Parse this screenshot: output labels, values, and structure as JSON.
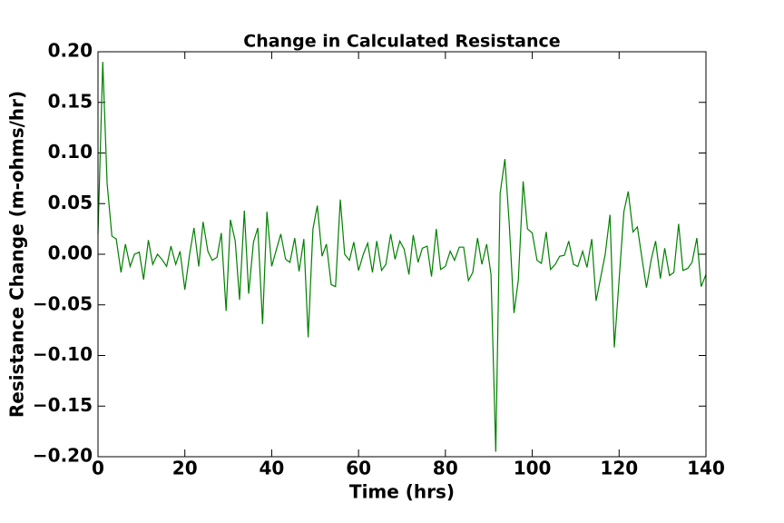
{
  "chart_data": {
    "type": "line",
    "title": "Change in Calculated Resistance",
    "x_label": "Time (hrs)",
    "y_label": "Resistance Change (m-ohms/hr)",
    "xlim": [
      0,
      140
    ],
    "xticks": [
      0,
      20,
      40,
      60,
      80,
      100,
      120,
      140
    ],
    "ylim": [
      -0.2,
      0.2
    ],
    "yticks": [
      {
        "value": -0.2,
        "label": "−0.20"
      },
      {
        "value": -0.15,
        "label": "−0.15"
      },
      {
        "value": -0.1,
        "label": "−0.10"
      },
      {
        "value": -0.05,
        "label": "−0.05"
      },
      {
        "value": 0,
        "label": "0.00"
      },
      {
        "value": 0.05,
        "label": "0.05"
      },
      {
        "value": 0.1,
        "label": "0.10"
      },
      {
        "value": 0.15,
        "label": "0.15"
      },
      {
        "value": 0.2,
        "label": "0.20"
      }
    ],
    "grid": false,
    "x": [
      0,
      1.1,
      2.1,
      3.2,
      4.2,
      5.3,
      6.3,
      7.4,
      8.4,
      9.5,
      10.5,
      11.6,
      12.6,
      13.7,
      14.7,
      15.8,
      16.8,
      17.9,
      18.9,
      20.0,
      21.1,
      22.1,
      23.2,
      24.2,
      25.3,
      26.3,
      27.4,
      28.4,
      29.5,
      30.5,
      31.6,
      32.6,
      33.7,
      34.7,
      35.8,
      36.8,
      37.9,
      38.9,
      40.0,
      41.1,
      42.1,
      43.2,
      44.2,
      45.3,
      46.3,
      47.4,
      48.4,
      49.5,
      50.5,
      51.6,
      52.6,
      53.7,
      54.7,
      55.8,
      56.8,
      57.9,
      58.9,
      60.0,
      61.1,
      62.1,
      63.2,
      64.2,
      65.3,
      66.3,
      67.4,
      68.4,
      69.5,
      70.5,
      71.6,
      72.6,
      73.7,
      74.7,
      75.8,
      76.8,
      77.9,
      78.9,
      80.0,
      81.1,
      82.1,
      83.2,
      84.2,
      85.3,
      86.3,
      87.4,
      88.4,
      89.5,
      90.5,
      91.6,
      92.6,
      93.7,
      94.7,
      95.8,
      96.8,
      97.9,
      98.9,
      100.0,
      101.1,
      102.1,
      103.2,
      104.2,
      105.3,
      106.3,
      107.4,
      108.4,
      109.5,
      110.5,
      111.6,
      112.6,
      113.7,
      114.7,
      115.8,
      116.8,
      117.9,
      118.9,
      120.0,
      121.1,
      122.1,
      123.2,
      124.2,
      125.3,
      126.3,
      127.4,
      128.4,
      129.5,
      130.5,
      131.6,
      132.6,
      133.7,
      134.7,
      135.8,
      136.8,
      137.9,
      138.9,
      140.0
    ],
    "series": [
      {
        "color": "#008000",
        "values": [
          0.02,
          0.19,
          0.07,
          0.018,
          0.015,
          -0.018,
          0.01,
          -0.012,
          0.0,
          0.002,
          -0.025,
          0.014,
          -0.01,
          0.0,
          -0.005,
          -0.012,
          0.008,
          -0.01,
          0.003,
          -0.035,
          0.0,
          0.026,
          -0.012,
          0.032,
          0.003,
          -0.006,
          -0.003,
          0.021,
          -0.056,
          0.034,
          0.013,
          -0.045,
          0.043,
          -0.039,
          0.012,
          0.026,
          -0.069,
          0.042,
          -0.012,
          0.005,
          0.02,
          -0.005,
          -0.008,
          0.016,
          -0.017,
          0.015,
          -0.082,
          0.025,
          0.048,
          -0.002,
          0.01,
          -0.03,
          -0.032,
          0.054,
          0.0,
          -0.006,
          0.012,
          -0.016,
          0.0,
          0.011,
          -0.018,
          0.013,
          -0.016,
          -0.01,
          0.02,
          -0.005,
          0.013,
          0.005,
          -0.02,
          0.019,
          -0.008,
          0.006,
          0.008,
          -0.022,
          0.025,
          -0.015,
          -0.012,
          0.003,
          -0.006,
          0.007,
          0.007,
          -0.026,
          -0.018,
          0.016,
          -0.01,
          0.01,
          -0.02,
          -0.195,
          0.06,
          0.094,
          0.03,
          -0.058,
          -0.025,
          0.072,
          0.025,
          0.021,
          -0.006,
          -0.009,
          0.022,
          -0.015,
          -0.01,
          -0.002,
          -0.001,
          0.013,
          -0.01,
          -0.012,
          0.003,
          -0.013,
          0.015,
          -0.046,
          -0.022,
          0.0,
          0.039,
          -0.092,
          -0.025,
          0.042,
          0.062,
          0.022,
          0.027,
          -0.005,
          -0.033,
          -0.005,
          0.013,
          -0.024,
          0.006,
          -0.021,
          -0.018,
          0.03,
          -0.016,
          -0.014,
          -0.008,
          0.016,
          -0.032,
          -0.02
        ]
      }
    ]
  }
}
